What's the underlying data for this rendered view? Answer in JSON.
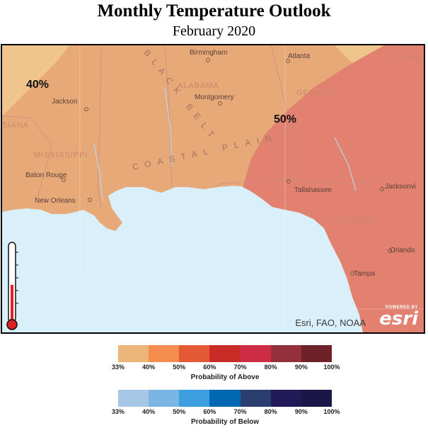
{
  "header": {
    "title": "Monthly Temperature Outlook",
    "subtitle": "February 2020"
  },
  "map": {
    "probability_labels": [
      "40%",
      "50%"
    ],
    "city_labels": [
      "Birmingham",
      "Atlanta",
      "Jackson",
      "Montgomery",
      "Baton Rouge",
      "New Orleans",
      "Tallahassee",
      "Jacksonvi",
      "Orlando",
      "Tampa"
    ],
    "state_labels": [
      "ALABAMA",
      "GEORGIA",
      "MISSISSIPPI",
      "FLORIDA",
      "SIANA",
      "SOUT",
      "CAROLI"
    ],
    "region_labels": [
      "COASTAL PLAIN",
      "BLACK BELT"
    ],
    "attribution": "Esri, FAO, NOAA",
    "esri_powered": "POWERED BY",
    "esri_logo": "esri",
    "colors": {
      "water": "#d9effa",
      "land_40": "#e8a978",
      "land_33": "#efc48d",
      "land_50": "#e28170",
      "thermometer_red": "#e02020"
    }
  },
  "legend_above": {
    "caption": "Probability of Above",
    "ticks": [
      "33%",
      "40%",
      "50%",
      "60%",
      "70%",
      "80%",
      "90%",
      "100%"
    ],
    "colors": [
      "#ebb57a",
      "#f58d4e",
      "#e35a34",
      "#c92b27",
      "#cc2c44",
      "#93303a",
      "#6e2128"
    ]
  },
  "legend_below": {
    "caption": "Probability of Below",
    "ticks": [
      "33%",
      "40%",
      "50%",
      "60%",
      "70%",
      "80%",
      "90%",
      "100%"
    ],
    "colors": [
      "#a6c8e6",
      "#7ab5e3",
      "#3d9ee0",
      "#0068b3",
      "#2b3e70",
      "#221a58",
      "#1b1648"
    ]
  }
}
